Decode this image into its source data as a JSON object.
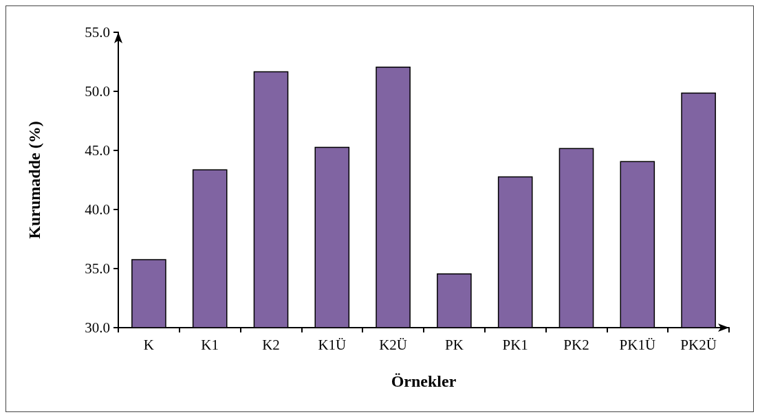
{
  "chart_data": {
    "type": "bar",
    "xlabel": "Örnekler",
    "ylabel": "Kurumadde (%)",
    "categories": [
      "K",
      "K1",
      "K2",
      "K1Ü",
      "K2Ü",
      "PK",
      "PK1",
      "PK2",
      "PK1Ü",
      "PK2Ü"
    ],
    "values": [
      35.8,
      43.4,
      51.7,
      45.3,
      52.1,
      34.6,
      42.8,
      45.2,
      44.1,
      49.9
    ],
    "color": "#8064a2",
    "ylim": [
      30,
      55
    ],
    "yticks": [
      {
        "value": 30,
        "label": "30.0"
      },
      {
        "value": 35,
        "label": "35.0"
      },
      {
        "value": 40,
        "label": "40.0"
      },
      {
        "value": 45,
        "label": "45.0"
      },
      {
        "value": 50,
        "label": "50.0"
      },
      {
        "value": 55,
        "label": "55.0"
      }
    ],
    "grid": false
  }
}
